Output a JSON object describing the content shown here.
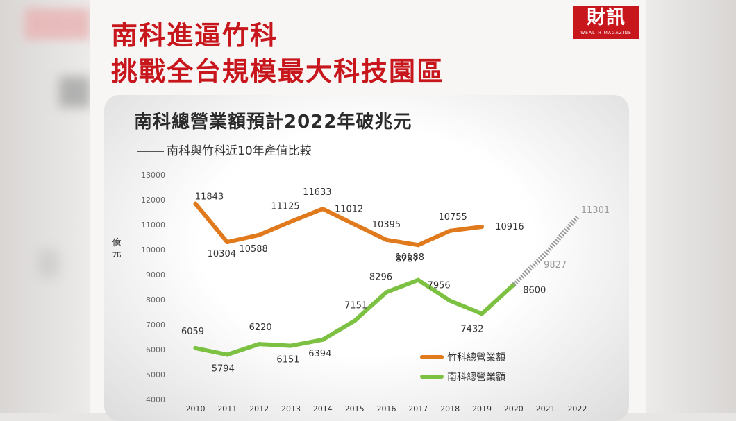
{
  "headline": {
    "line1": "南科進逼竹科",
    "line2": "挑戰全台規模最大科技園區"
  },
  "logo": {
    "main": "財訊",
    "sub": "WEALTH MAGAZINE"
  },
  "chart_data": {
    "type": "line",
    "title": "南科總營業額預計2022年破兆元",
    "subtitle": "南科與竹科近10年產值比較",
    "ylabel": "億元",
    "xlabel": "",
    "ylim": [
      4000,
      13000
    ],
    "yticks": [
      4000,
      5000,
      6000,
      7000,
      8000,
      9000,
      10000,
      11000,
      12000,
      13000
    ],
    "x": [
      2010,
      2011,
      2012,
      2013,
      2014,
      2015,
      2016,
      2017,
      2018,
      2019,
      2020,
      2021,
      2022
    ],
    "grid": false,
    "legend_position": "lower-right",
    "series": [
      {
        "name": "竹科總營業額",
        "color": "#e07a1c",
        "values": [
          11843,
          10304,
          10588,
          11125,
          11633,
          11012,
          10395,
          10188,
          10755,
          10916,
          null,
          null,
          null
        ],
        "labels": [
          "11843",
          "10304",
          "10588",
          "11125",
          "11633",
          "11012",
          "10395",
          "10188",
          "10755",
          "10916",
          "",
          "",
          ""
        ]
      },
      {
        "name": "南科總營業額",
        "color": "#7cc142",
        "values": [
          6059,
          5794,
          6220,
          6151,
          6394,
          7151,
          8296,
          8787,
          7956,
          7432,
          8600,
          null,
          null
        ],
        "labels": [
          "6059",
          "5794",
          "6220",
          "6151",
          "6394",
          "7151",
          "8296",
          "8787",
          "7956",
          "7432",
          "8600",
          "",
          ""
        ],
        "projection": {
          "x": [
            2020,
            2021,
            2022
          ],
          "values": [
            8600,
            9827,
            11301
          ],
          "labels": [
            "",
            "9827",
            "11301"
          ],
          "color": "#9a9a9a"
        }
      }
    ]
  }
}
